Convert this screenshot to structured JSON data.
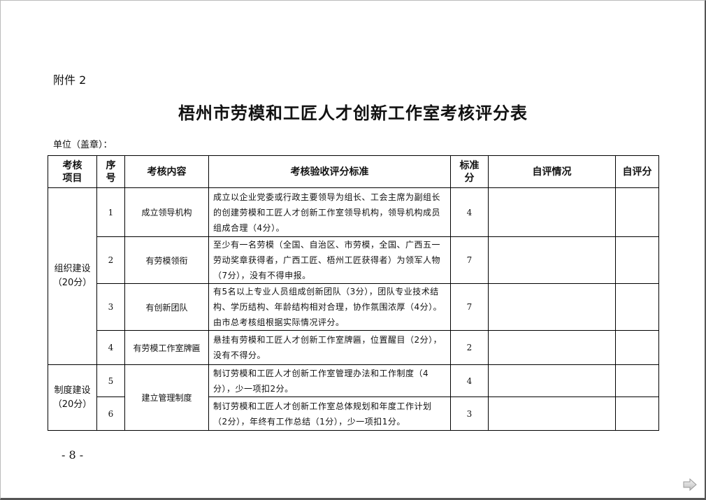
{
  "attachment": "附件 2",
  "title": "梧州市劳模和工匠人才创新工作室考核评分表",
  "unit_label": "单位（盖章）：",
  "headers": {
    "category_1": "考核",
    "category_2": "项目",
    "seq_1": "序",
    "seq_2": "号",
    "content": "考核内容",
    "standard": "考核验收评分标准",
    "score_1": "标准",
    "score_2": "分",
    "self_eval": "自评情况",
    "self_score": "自评分"
  },
  "groups": [
    {
      "name": "组织建设",
      "points": "（20分）"
    },
    {
      "name": "制度建设",
      "points": "（20分）"
    }
  ],
  "rows": [
    {
      "seq": "1",
      "content": "成立领导机构",
      "standard": "成立以企业党委或行政主要领导为组长、工会主席为副组长的创建劳模和工匠人才创新工作室领导机构，领导机构成员组成合理（4分）。",
      "score": "4"
    },
    {
      "seq": "2",
      "content": "有劳模领衔",
      "standard": "至少有一名劳模（全国、自治区、市劳模，全国、广西五一劳动奖章获得者，广西工匠、梧州工匠获得者）为领军人物（7分），没有不得申报。",
      "score": "7"
    },
    {
      "seq": "3",
      "content": "有创新团队",
      "standard": "有5名以上专业人员组成创新团队（3分），团队专业技术结构、学历结构、年龄结构相对合理，协作氛围浓厚（4分）。由市总考核组根据实际情况评分。",
      "score": "7"
    },
    {
      "seq": "4",
      "content": "有劳模工作室牌匾",
      "standard": "悬挂有劳模和工匠人才创新工作室牌匾，位置醒目（2分），没有不得分。",
      "score": "2"
    },
    {
      "seq": "5",
      "content": "建立管理制度",
      "standard": "制订劳模和工匠人才创新工作室管理办法和工作制度（4分），少一项扣2分。",
      "score": "4"
    },
    {
      "seq": "6",
      "standard": "制订劳模和工匠人才创新工作室总体规划和年度工作计划（2分），年终有工作总结（1分），少一项扣1分。",
      "score": "3"
    }
  ],
  "page_number": "- 8 -",
  "next_icon": "arrow-right-icon"
}
